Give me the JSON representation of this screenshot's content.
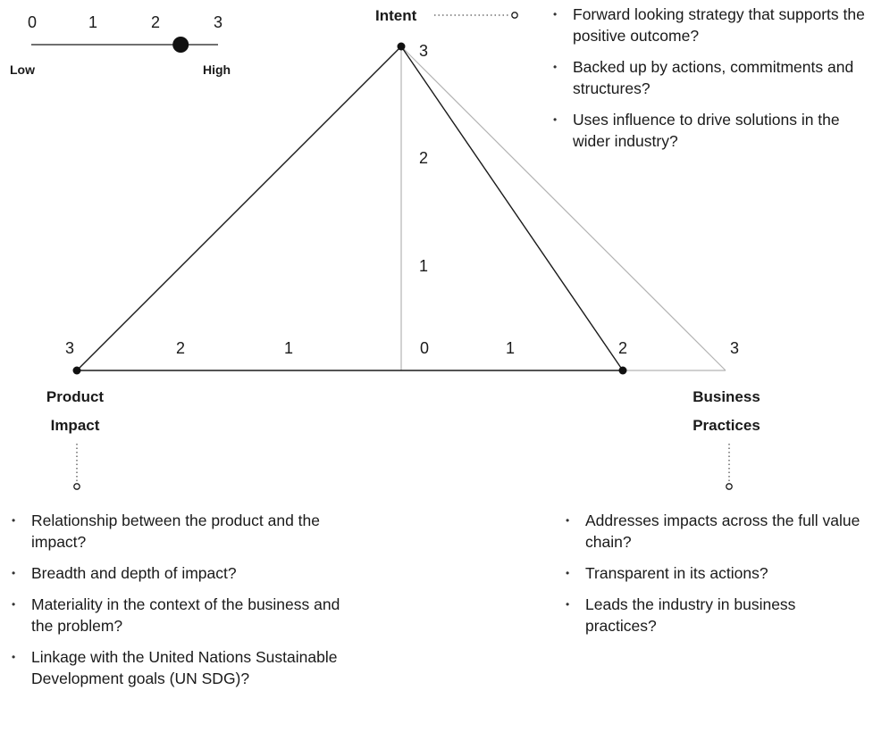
{
  "scale": {
    "numbers": [
      "0",
      "1",
      "2",
      "3"
    ],
    "low_label": "Low",
    "high_label": "High",
    "marker_value": 2.4
  },
  "axes": {
    "intent": {
      "label": "Intent",
      "ticks": [
        "1",
        "2",
        "3"
      ],
      "score": 3,
      "criteria": [
        "Forward looking strategy that supports the positive outcome?",
        "Backed up by actions, commitments and structures?",
        "Uses influence to drive solutions in the wider industry?"
      ]
    },
    "product_impact": {
      "label_lines": [
        "Product",
        "Impact"
      ],
      "ticks": [
        "3",
        "2",
        "1"
      ],
      "score": 3,
      "criteria": [
        "Relationship between the product and the impact?",
        "Breadth and depth of impact?",
        "Materiality in the context of the business and the problem?",
        "Linkage with the United Nations Sustainable Development goals (UN SDG)?"
      ]
    },
    "business_practices": {
      "label_lines": [
        "Business",
        "Practices"
      ],
      "ticks": [
        "1",
        "2",
        "3"
      ],
      "score": 2,
      "criteria": [
        "Addresses impacts across the full value chain?",
        "Transparent in its actions?",
        "Leads the industry in business practices?"
      ]
    },
    "origin_label": "0"
  },
  "colors": {
    "line": "#1a1a1a",
    "reference_line": "#b3b3b3",
    "dot": "#111111"
  }
}
